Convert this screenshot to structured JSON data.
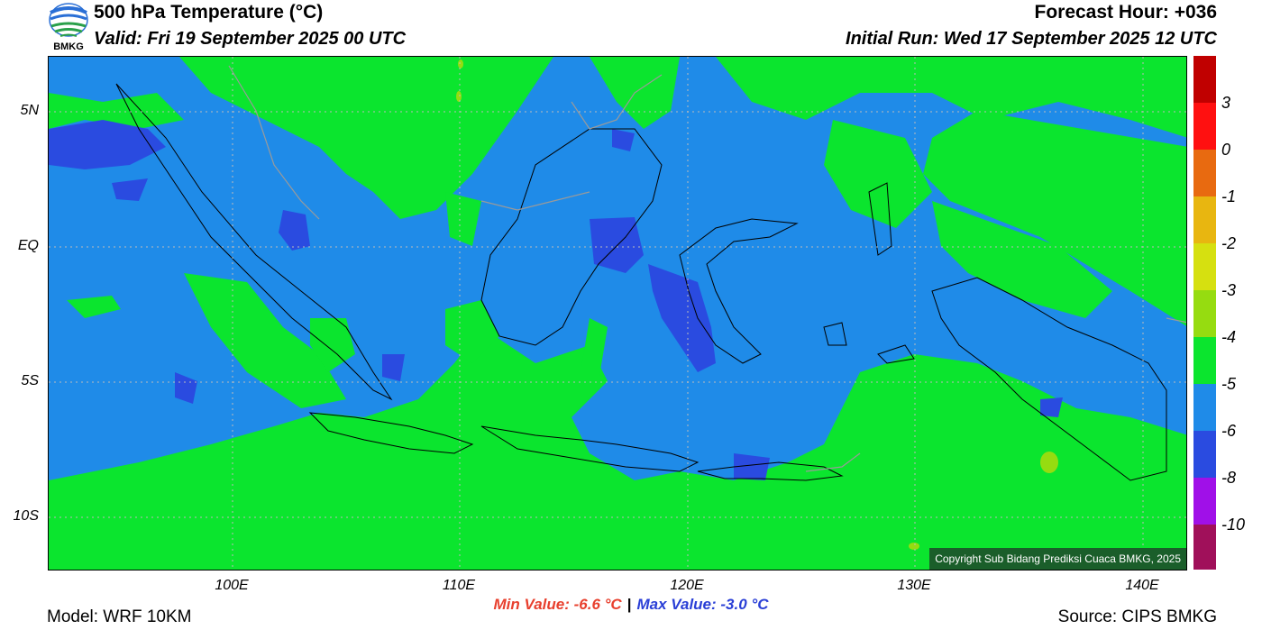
{
  "header": {
    "title": "500 hPa Temperature (°C)",
    "valid": "Valid: Fri 19 September 2025 00 UTC",
    "forecast_hour": "Forecast Hour: +036",
    "initial_run": "Initial Run: Wed 17 September 2025 12 UTC",
    "logo_text": "BMKG",
    "logo_icon": "bmkg-logo-icon"
  },
  "map": {
    "lat_labels": [
      "5N",
      "EQ",
      "5S",
      "10S"
    ],
    "lon_labels": [
      "100E",
      "110E",
      "120E",
      "130E",
      "140E"
    ],
    "colors": {
      "blue": "#1f8be8",
      "green": "#0be52e",
      "dark_blue": "#2a4be0",
      "coast": "#000000",
      "border": "#9a9a9a"
    },
    "copyright": "Copyright Sub Bidang Prediksi Cuaca BMKG, 2025"
  },
  "colorbar": {
    "labels": [
      "3",
      "0",
      "-1",
      "-2",
      "-3",
      "-4",
      "-5",
      "-6",
      "-8",
      "-10"
    ],
    "colors": [
      "#c00000",
      "#ff1010",
      "#ff2020",
      "#e86a10",
      "#e8b610",
      "#d6e010",
      "#96dc10",
      "#0be52e",
      "#1f8be8",
      "#2a4be0",
      "#a010e8",
      "#a0105a"
    ]
  },
  "footer": {
    "min_value": "Min Value: -6.6 °C",
    "max_value": "Max Value: -3.0 °C",
    "separator": "|",
    "model": "Model: WRF 10KM",
    "source": "Source: CIPS BMKG"
  }
}
